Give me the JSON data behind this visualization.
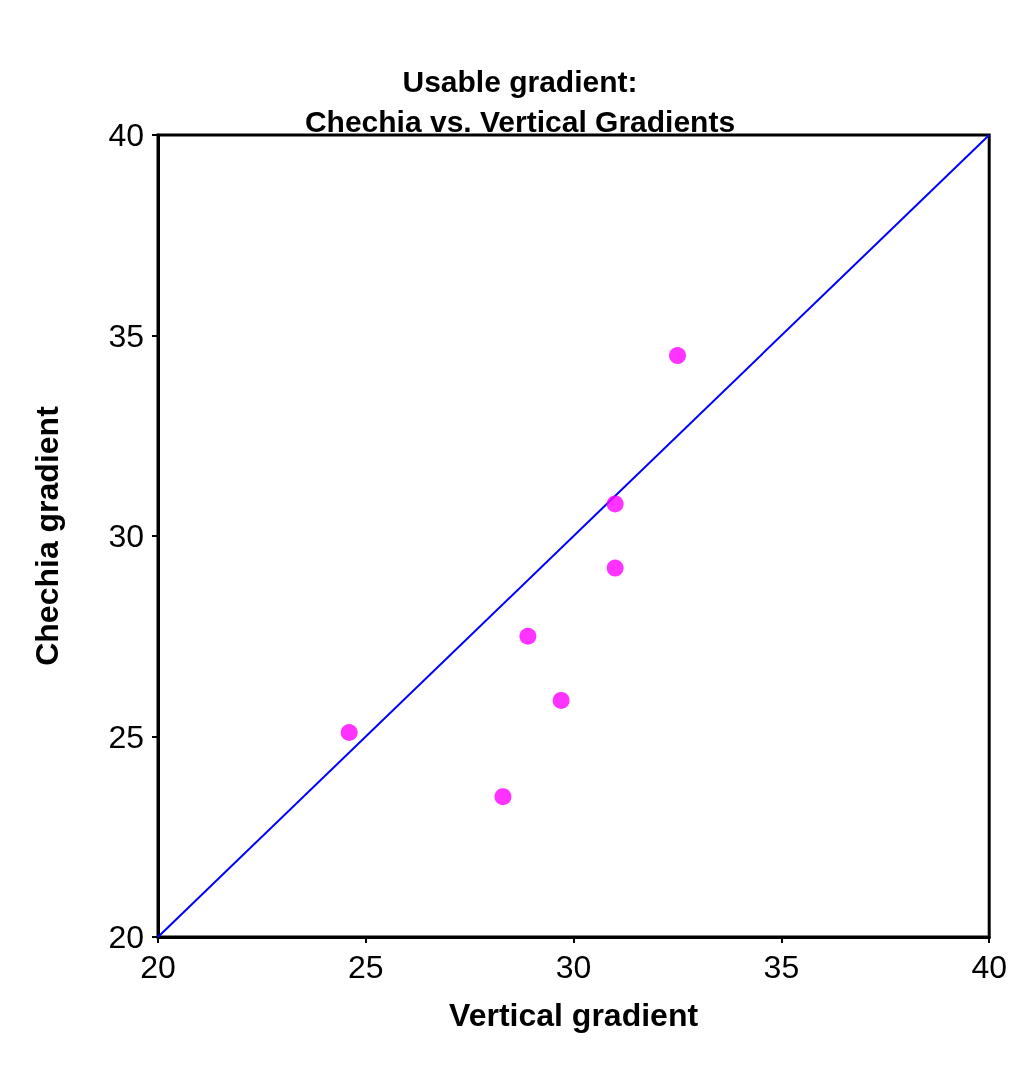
{
  "chart_data": {
    "type": "scatter",
    "title": "Usable gradient:\nChechia vs. Vertical Gradients",
    "xlabel": "Vertical gradient",
    "ylabel": "Chechia gradient",
    "xlim": [
      20,
      40
    ],
    "xticks": [
      20,
      25,
      30,
      35,
      40
    ],
    "ylim": [
      20,
      40
    ],
    "yticks": [
      20,
      25,
      30,
      35,
      40
    ],
    "grid": false,
    "marker": "circle",
    "series": [
      {
        "color": "#ff00ff",
        "x": [
          24.6,
          28.3,
          28.9,
          29.7,
          31.0,
          31.0,
          32.5
        ],
        "values": [
          25.1,
          23.5,
          27.5,
          25.9,
          30.8,
          29.2,
          34.5
        ]
      },
      {
        "type": "line",
        "color": "#0000ff",
        "line_style": "solid",
        "marker": "none",
        "x": [
          20,
          40
        ],
        "values": [
          20,
          40
        ]
      }
    ]
  }
}
